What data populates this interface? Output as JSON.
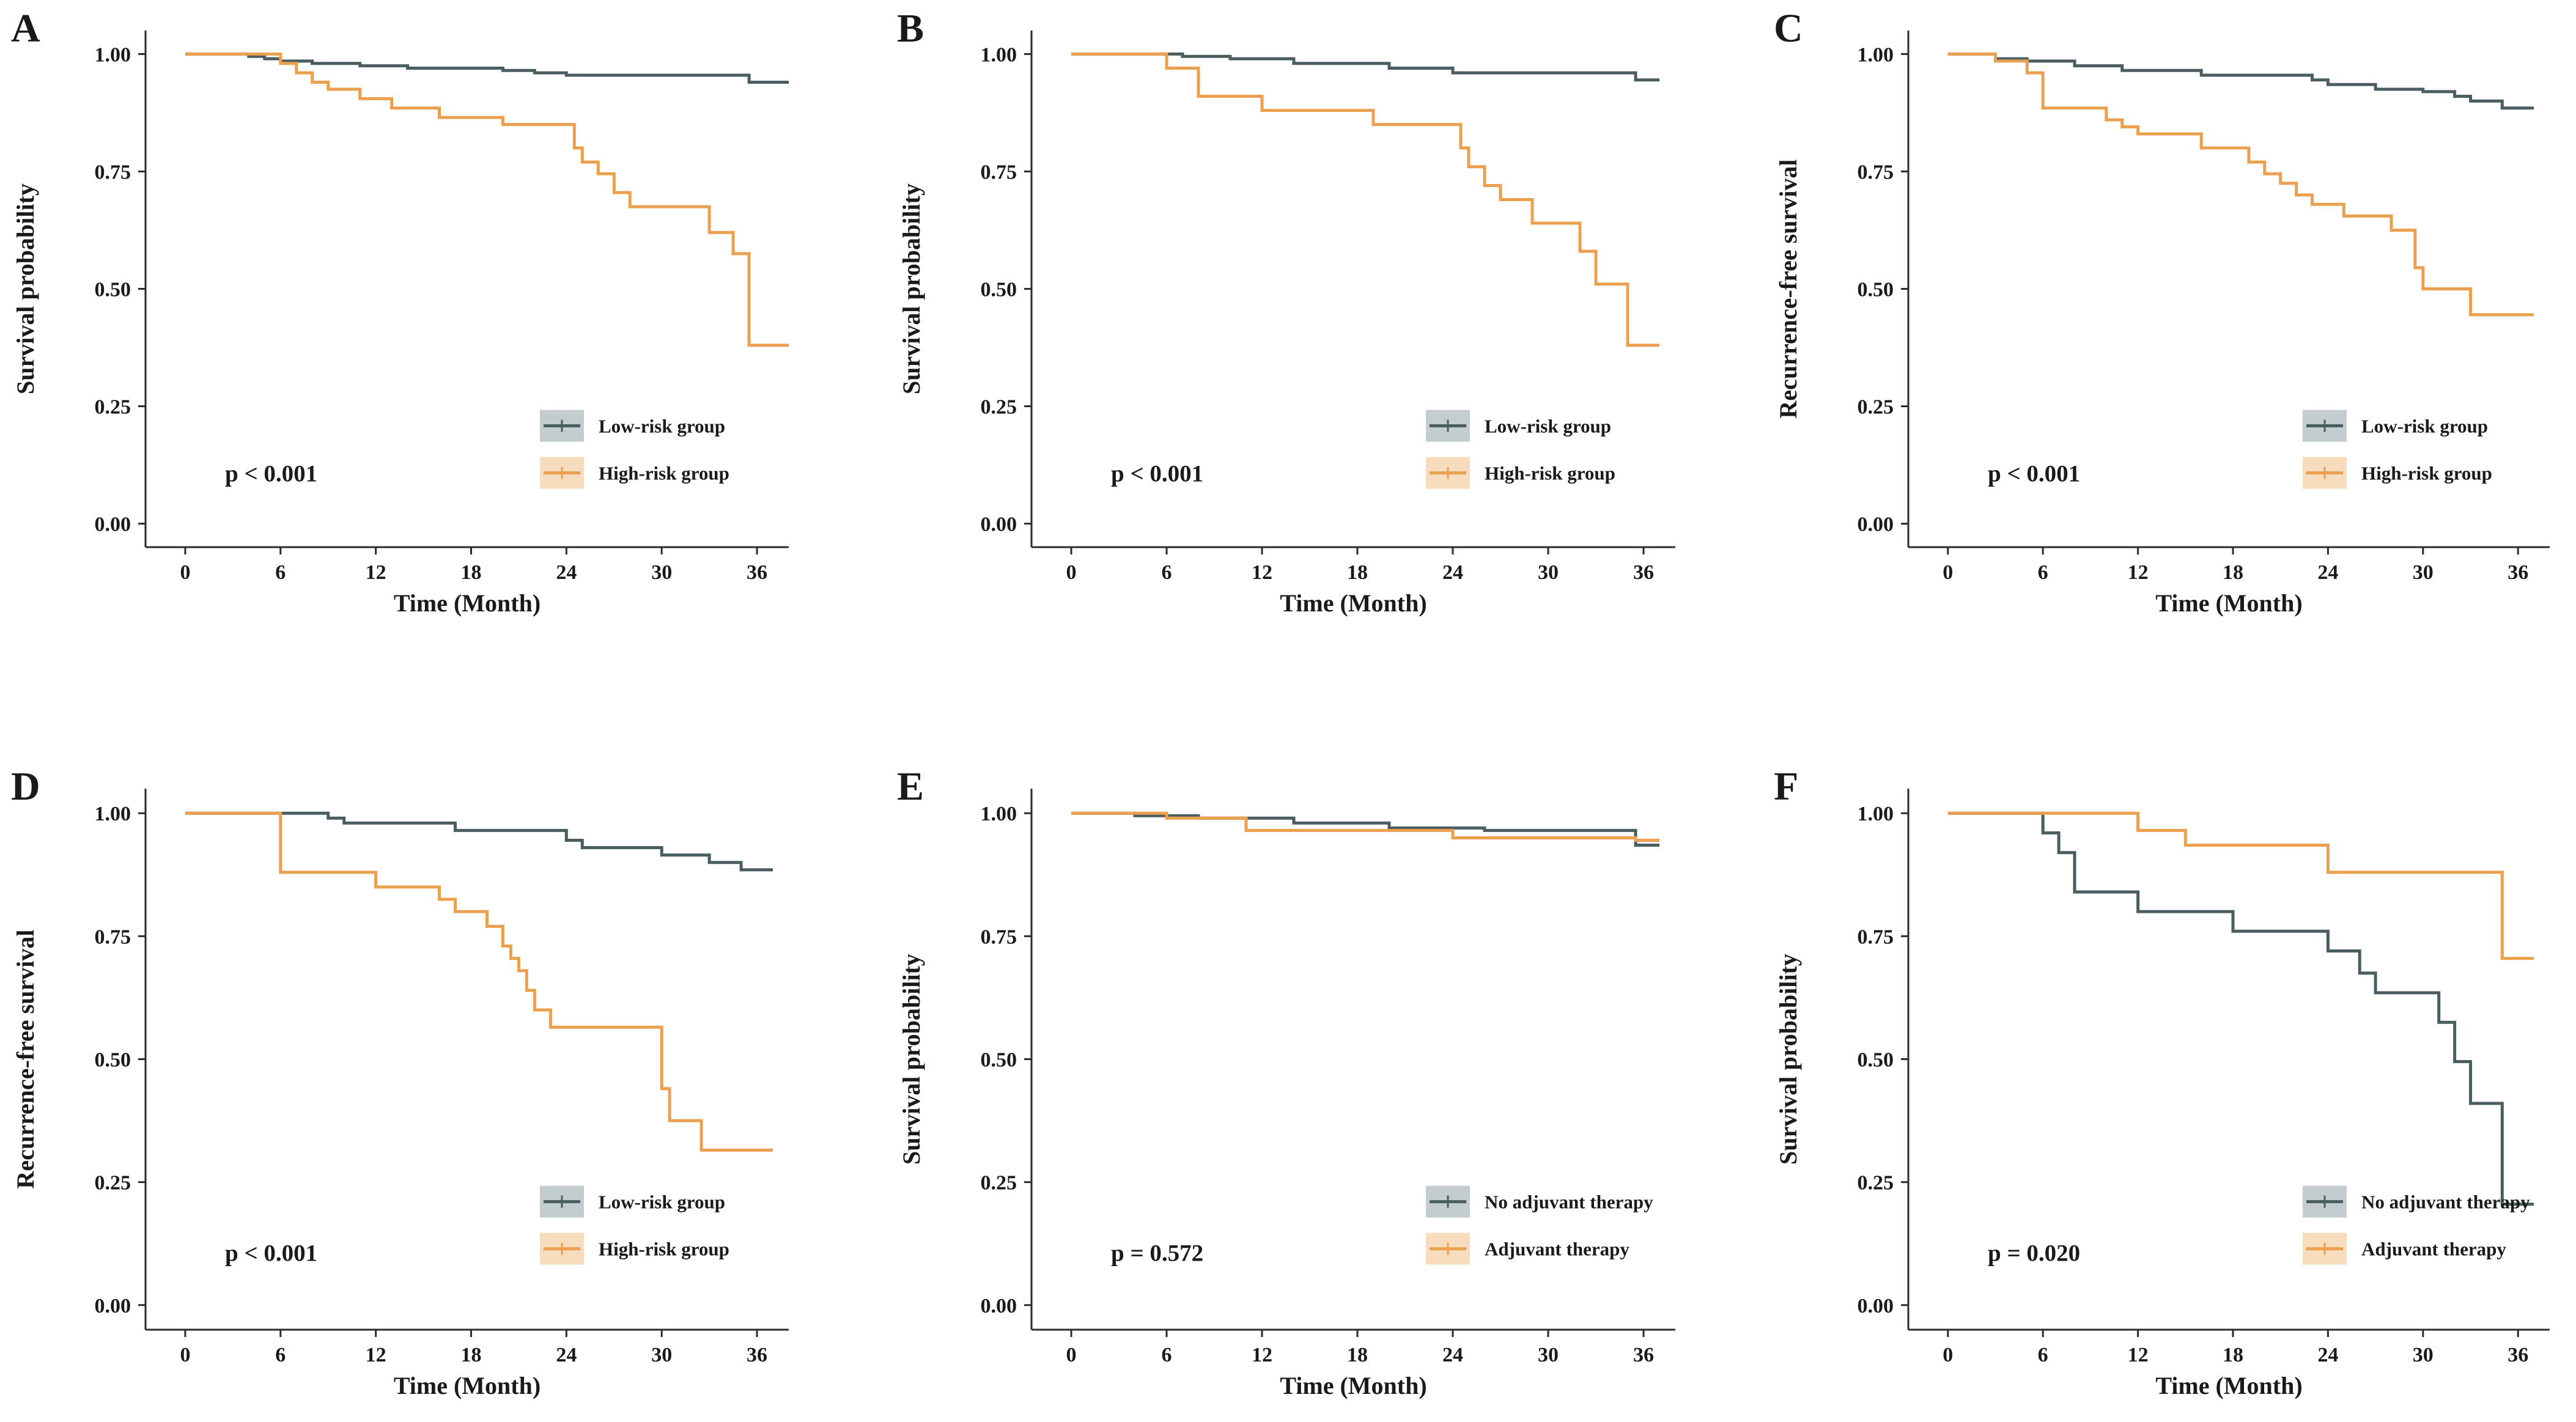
{
  "figure": {
    "n_panels": 6,
    "layout": "2 rows x 3 columns"
  },
  "colors": {
    "low": "#4a5d61",
    "high": "#eba050",
    "low_legend_bg": "#c3cdcf",
    "high_legend_bg": "#f8dcbe",
    "axis": "#2b2b2b"
  },
  "chart_data": [
    {
      "type": "line",
      "subtype": "kaplan-meier-step",
      "panel": "A",
      "xlabel": "Time (Month)",
      "ylabel": "Survival probability",
      "xlim": [
        -2.5,
        38
      ],
      "ylim": [
        -0.05,
        1.05
      ],
      "xticks": [
        0,
        6,
        12,
        18,
        24,
        30,
        36
      ],
      "yticks": [
        0,
        0.25,
        0.5,
        0.75,
        1.0
      ],
      "xtick_labels": [
        "0",
        "6",
        "12",
        "18",
        "24",
        "30",
        "36"
      ],
      "ytick_labels": [
        "0.00",
        "0.25",
        "0.50",
        "0.75",
        "1.00"
      ],
      "p_value": "p < 0.001",
      "legend_position": "bottom-right",
      "series": [
        {
          "name": "Low-risk group",
          "color": "low",
          "x": [
            0,
            4,
            5,
            6,
            8,
            11,
            14,
            17,
            20,
            22,
            24,
            28,
            32,
            35.5,
            38
          ],
          "y": [
            1.0,
            0.995,
            0.99,
            0.985,
            0.98,
            0.975,
            0.97,
            0.97,
            0.965,
            0.96,
            0.955,
            0.955,
            0.955,
            0.94,
            0.94
          ]
        },
        {
          "name": "High-risk group",
          "color": "high",
          "x": [
            0,
            6,
            7,
            8,
            9,
            11,
            13,
            16,
            19,
            20,
            24.5,
            25,
            26,
            27,
            28,
            30,
            33,
            34.5,
            35.5,
            38
          ],
          "y": [
            1.0,
            0.98,
            0.96,
            0.94,
            0.925,
            0.905,
            0.885,
            0.865,
            0.865,
            0.85,
            0.8,
            0.77,
            0.745,
            0.705,
            0.675,
            0.675,
            0.62,
            0.575,
            0.38,
            0.38
          ]
        }
      ]
    },
    {
      "type": "line",
      "subtype": "kaplan-meier-step",
      "panel": "B",
      "xlabel": "Time (Month)",
      "ylabel": "Survival probability",
      "xlim": [
        -2.5,
        38
      ],
      "ylim": [
        -0.05,
        1.05
      ],
      "xticks": [
        0,
        6,
        12,
        18,
        24,
        30,
        36
      ],
      "yticks": [
        0,
        0.25,
        0.5,
        0.75,
        1.0
      ],
      "xtick_labels": [
        "0",
        "6",
        "12",
        "18",
        "24",
        "30",
        "36"
      ],
      "ytick_labels": [
        "0.00",
        "0.25",
        "0.50",
        "0.75",
        "1.00"
      ],
      "p_value": "p < 0.001",
      "legend_position": "bottom-right",
      "series": [
        {
          "name": "Low-risk group",
          "color": "low",
          "x": [
            0,
            7,
            10,
            14,
            20,
            24,
            30,
            35.5,
            37
          ],
          "y": [
            1.0,
            0.995,
            0.99,
            0.98,
            0.97,
            0.96,
            0.96,
            0.945,
            0.945
          ]
        },
        {
          "name": "High-risk group",
          "color": "high",
          "x": [
            0,
            6,
            8,
            12,
            19,
            24.5,
            25,
            26,
            27,
            29,
            32,
            33,
            35,
            37
          ],
          "y": [
            1.0,
            0.97,
            0.91,
            0.88,
            0.85,
            0.8,
            0.76,
            0.72,
            0.69,
            0.64,
            0.58,
            0.51,
            0.38,
            0.38
          ]
        }
      ]
    },
    {
      "type": "line",
      "subtype": "kaplan-meier-step",
      "panel": "C",
      "xlabel": "Time (Month)",
      "ylabel": "Recurrence-free survival",
      "xlim": [
        -2.5,
        38
      ],
      "ylim": [
        -0.05,
        1.05
      ],
      "xticks": [
        0,
        6,
        12,
        18,
        24,
        30,
        36
      ],
      "yticks": [
        0,
        0.25,
        0.5,
        0.75,
        1.0
      ],
      "xtick_labels": [
        "0",
        "6",
        "12",
        "18",
        "24",
        "30",
        "36"
      ],
      "ytick_labels": [
        "0.00",
        "0.25",
        "0.50",
        "0.75",
        "1.00"
      ],
      "p_value": "p < 0.001",
      "legend_position": "bottom-right",
      "series": [
        {
          "name": "Low-risk group",
          "color": "low",
          "x": [
            0,
            3,
            5,
            8,
            11,
            16,
            23,
            24,
            27,
            30,
            32,
            33,
            35,
            37
          ],
          "y": [
            1.0,
            0.99,
            0.985,
            0.975,
            0.965,
            0.955,
            0.945,
            0.935,
            0.925,
            0.92,
            0.91,
            0.9,
            0.885,
            0.885
          ]
        },
        {
          "name": "High-risk group",
          "color": "high",
          "x": [
            0,
            3,
            5,
            6,
            10,
            11,
            12,
            16,
            19,
            20,
            21,
            22,
            23,
            25,
            28,
            29.5,
            30,
            33,
            37
          ],
          "y": [
            1.0,
            0.985,
            0.96,
            0.885,
            0.86,
            0.845,
            0.83,
            0.8,
            0.77,
            0.745,
            0.725,
            0.7,
            0.68,
            0.655,
            0.625,
            0.545,
            0.5,
            0.445,
            0.445
          ]
        }
      ]
    },
    {
      "type": "line",
      "subtype": "kaplan-meier-step",
      "panel": "D",
      "xlabel": "Time (Month)",
      "ylabel": "Recurrence-free survival",
      "xlim": [
        -2.5,
        38
      ],
      "ylim": [
        -0.05,
        1.05
      ],
      "xticks": [
        0,
        6,
        12,
        18,
        24,
        30,
        36
      ],
      "yticks": [
        0,
        0.25,
        0.5,
        0.75,
        1.0
      ],
      "xtick_labels": [
        "0",
        "6",
        "12",
        "18",
        "24",
        "30",
        "36"
      ],
      "ytick_labels": [
        "0.00",
        "0.25",
        "0.50",
        "0.75",
        "1.00"
      ],
      "p_value": "p < 0.001",
      "legend_position": "bottom-right",
      "series": [
        {
          "name": "Low-risk group",
          "color": "low",
          "x": [
            0,
            9,
            10,
            17,
            24,
            25,
            30,
            33,
            35,
            37
          ],
          "y": [
            1.0,
            0.99,
            0.98,
            0.965,
            0.945,
            0.93,
            0.915,
            0.9,
            0.885,
            0.885
          ]
        },
        {
          "name": "High-risk group",
          "color": "high",
          "x": [
            0,
            6,
            12,
            16,
            17,
            19,
            20,
            20.5,
            21,
            21.5,
            22,
            23,
            30,
            30.5,
            32.5,
            37
          ],
          "y": [
            1.0,
            0.88,
            0.85,
            0.825,
            0.8,
            0.77,
            0.73,
            0.705,
            0.68,
            0.64,
            0.6,
            0.565,
            0.44,
            0.375,
            0.315,
            0.315
          ]
        }
      ]
    },
    {
      "type": "line",
      "subtype": "kaplan-meier-step",
      "panel": "E",
      "xlabel": "Time (Month)",
      "ylabel": "Survival probability",
      "xlim": [
        -2.5,
        38
      ],
      "ylim": [
        -0.05,
        1.05
      ],
      "xticks": [
        0,
        6,
        12,
        18,
        24,
        30,
        36
      ],
      "yticks": [
        0,
        0.25,
        0.5,
        0.75,
        1.0
      ],
      "xtick_labels": [
        "0",
        "6",
        "12",
        "18",
        "24",
        "30",
        "36"
      ],
      "ytick_labels": [
        "0.00",
        "0.25",
        "0.50",
        "0.75",
        "1.00"
      ],
      "p_value": "p = 0.572",
      "legend_position": "bottom-right",
      "series": [
        {
          "name": "No adjuvant therapy",
          "color": "low",
          "x": [
            0,
            4,
            8,
            14,
            20,
            26,
            35.5,
            37
          ],
          "y": [
            1.0,
            0.995,
            0.99,
            0.98,
            0.97,
            0.965,
            0.935,
            0.935
          ]
        },
        {
          "name": "Adjuvant therapy",
          "color": "high",
          "x": [
            0,
            6,
            11,
            24,
            35.5,
            37
          ],
          "y": [
            1.0,
            0.99,
            0.965,
            0.95,
            0.945,
            0.945
          ]
        }
      ]
    },
    {
      "type": "line",
      "subtype": "kaplan-meier-step",
      "panel": "F",
      "xlabel": "Time (Month)",
      "ylabel": "Survival probability",
      "xlim": [
        -2.5,
        38
      ],
      "ylim": [
        -0.05,
        1.05
      ],
      "xticks": [
        0,
        6,
        12,
        18,
        24,
        30,
        36
      ],
      "yticks": [
        0,
        0.25,
        0.5,
        0.75,
        1.0
      ],
      "xtick_labels": [
        "0",
        "6",
        "12",
        "18",
        "24",
        "30",
        "36"
      ],
      "ytick_labels": [
        "0.00",
        "0.25",
        "0.50",
        "0.75",
        "1.00"
      ],
      "p_value": "p = 0.020",
      "legend_position": "bottom-right",
      "series": [
        {
          "name": "No adjuvant therapy",
          "color": "low",
          "x": [
            0,
            6,
            7,
            8,
            10,
            12,
            18,
            24,
            26,
            27,
            31,
            32,
            33,
            35,
            37
          ],
          "y": [
            1.0,
            0.96,
            0.92,
            0.84,
            0.84,
            0.8,
            0.76,
            0.72,
            0.675,
            0.635,
            0.575,
            0.495,
            0.41,
            0.205,
            0.205
          ]
        },
        {
          "name": "Adjuvant therapy",
          "color": "high",
          "x": [
            0,
            12,
            15,
            18,
            24,
            34.5,
            35,
            37
          ],
          "y": [
            1.0,
            0.965,
            0.935,
            0.935,
            0.88,
            0.88,
            0.705,
            0.705
          ]
        }
      ]
    }
  ]
}
